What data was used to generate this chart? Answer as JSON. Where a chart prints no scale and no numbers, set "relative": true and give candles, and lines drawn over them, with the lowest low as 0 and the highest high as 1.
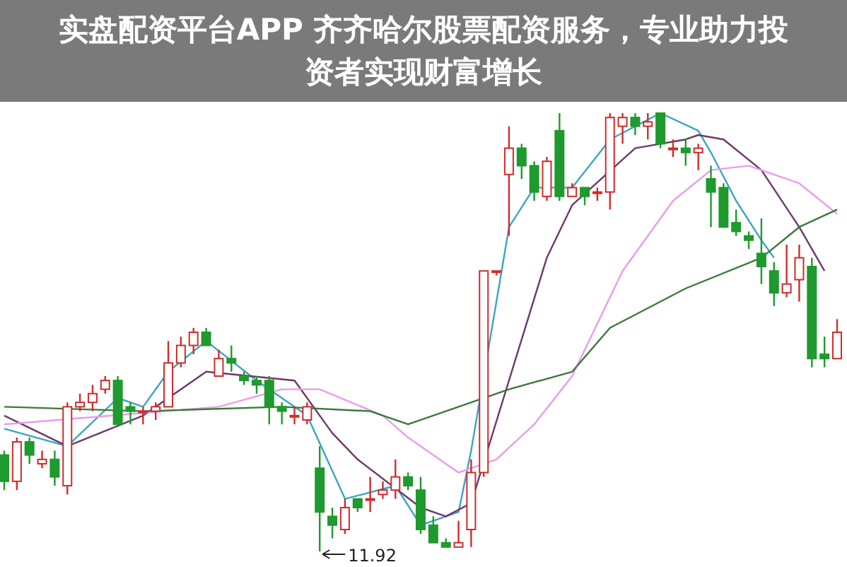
{
  "chart_data": {
    "type": "candlestick",
    "title": "实盘配资平台APP 齐齐哈尔股票配资服务，专业助力投资者实现财富增长",
    "relative": true,
    "categories": [
      null,
      null,
      null,
      null,
      null,
      null,
      null,
      null,
      null,
      null,
      null,
      null,
      null,
      null,
      null,
      null,
      null,
      null,
      null,
      null,
      null,
      null,
      null,
      null,
      null,
      null,
      null,
      null,
      null,
      null,
      null,
      null,
      null,
      null,
      null,
      null,
      null,
      null,
      null,
      null,
      null,
      null,
      null,
      null,
      null,
      null,
      null,
      null,
      null,
      null,
      null,
      null,
      null,
      null,
      null,
      null,
      null,
      null,
      null,
      null,
      null,
      null,
      null,
      null,
      null,
      null,
      null
    ],
    "ohlc": [
      [
        0.22,
        0.23,
        0.14,
        0.16
      ],
      [
        0.16,
        0.26,
        0.14,
        0.25
      ],
      [
        0.25,
        0.26,
        0.2,
        0.22
      ],
      [
        0.2,
        0.23,
        0.19,
        0.21
      ],
      [
        0.21,
        0.23,
        0.15,
        0.17
      ],
      [
        0.15,
        0.34,
        0.13,
        0.33
      ],
      [
        0.33,
        0.36,
        0.32,
        0.34
      ],
      [
        0.34,
        0.38,
        0.32,
        0.36
      ],
      [
        0.37,
        0.4,
        0.36,
        0.39
      ],
      [
        0.39,
        0.4,
        0.29,
        0.29
      ],
      [
        0.33,
        0.34,
        0.29,
        0.32
      ],
      [
        0.32,
        0.33,
        0.29,
        0.32
      ],
      [
        0.32,
        0.34,
        0.3,
        0.33
      ],
      [
        0.33,
        0.48,
        0.33,
        0.43
      ],
      [
        0.43,
        0.49,
        0.42,
        0.47
      ],
      [
        0.47,
        0.51,
        0.45,
        0.5
      ],
      [
        0.5,
        0.51,
        0.47,
        0.47
      ],
      [
        0.4,
        0.46,
        0.4,
        0.44
      ],
      [
        0.44,
        0.47,
        0.41,
        0.43
      ],
      [
        0.4,
        0.41,
        0.38,
        0.39
      ],
      [
        0.39,
        0.4,
        0.36,
        0.38
      ],
      [
        0.39,
        0.4,
        0.29,
        0.33
      ],
      [
        0.33,
        0.34,
        0.29,
        0.32
      ],
      [
        0.31,
        0.33,
        0.29,
        0.31
      ],
      [
        0.3,
        0.34,
        0.29,
        0.33
      ],
      [
        0.19,
        0.24,
        0.0,
        0.09
      ],
      [
        0.08,
        0.1,
        0.03,
        0.06
      ],
      [
        0.05,
        0.12,
        0.04,
        0.1
      ],
      [
        0.12,
        0.12,
        0.09,
        0.1
      ],
      [
        0.12,
        0.17,
        0.09,
        0.12
      ],
      [
        0.13,
        0.16,
        0.12,
        0.14
      ],
      [
        0.14,
        0.21,
        0.12,
        0.17
      ],
      [
        0.17,
        0.18,
        0.14,
        0.15
      ],
      [
        0.14,
        0.17,
        0.04,
        0.05
      ],
      [
        0.06,
        0.08,
        0.02,
        0.02
      ],
      [
        0.02,
        0.03,
        0.01,
        0.01
      ],
      [
        0.01,
        0.07,
        0.01,
        0.02
      ],
      [
        0.05,
        0.21,
        0.01,
        0.18
      ],
      [
        0.18,
        0.64,
        0.17,
        0.64
      ],
      [
        0.64,
        0.64,
        0.63,
        0.64
      ],
      [
        0.86,
        0.97,
        0.72,
        0.92
      ],
      [
        0.92,
        0.93,
        0.85,
        0.88
      ],
      [
        0.88,
        0.89,
        0.8,
        0.82
      ],
      [
        0.81,
        0.9,
        0.8,
        0.89
      ],
      [
        0.96,
        1,
        0.8,
        0.81
      ],
      [
        0.81,
        0.84,
        0.81,
        0.83
      ],
      [
        0.83,
        0.83,
        0.79,
        0.81
      ],
      [
        0.82,
        0.83,
        0.8,
        0.82
      ],
      [
        0.82,
        1,
        0.78,
        0.99
      ],
      [
        0.97,
        1,
        0.93,
        0.99
      ],
      [
        0.99,
        1,
        0.95,
        0.97
      ],
      [
        0.97,
        1,
        0.94,
        0.98
      ],
      [
        1,
        1,
        0.92,
        0.93
      ],
      [
        0.92,
        0.94,
        0.9,
        0.92
      ],
      [
        0.92,
        0.94,
        0.88,
        0.91
      ],
      [
        0.91,
        0.93,
        0.87,
        0.92
      ],
      [
        0.85,
        0.88,
        0.74,
        0.82
      ],
      [
        0.83,
        0.84,
        0.74,
        0.74
      ],
      [
        0.75,
        0.78,
        0.72,
        0.73
      ],
      [
        0.72,
        0.73,
        0.69,
        0.71
      ],
      [
        0.68,
        0.76,
        0.61,
        0.65
      ],
      [
        0.64,
        0.66,
        0.56,
        0.59
      ],
      [
        0.59,
        0.7,
        0.58,
        0.61
      ],
      [
        0.62,
        0.7,
        0.57,
        0.67
      ],
      [
        0.65,
        0.67,
        0.42,
        0.44
      ],
      [
        0.45,
        0.49,
        0.42,
        0.44
      ],
      [
        0.44,
        0.53,
        0.44,
        0.5
      ]
    ],
    "series": [
      {
        "type": "line",
        "color": "#3aa6c0",
        "values": [
          0.28,
          null,
          null,
          null,
          null,
          0.24,
          null,
          null,
          null,
          0.35,
          null,
          0.33,
          null,
          0.41,
          null,
          null,
          0.48,
          null,
          null,
          null,
          0.39,
          null,
          null,
          null,
          0.31,
          null,
          null,
          0.12,
          null,
          null,
          null,
          0.15,
          null,
          0.06,
          null,
          null,
          0.09,
          0.23,
          null,
          null,
          0.74,
          null,
          0.83,
          null,
          null,
          0.83,
          null,
          null,
          0.94,
          null,
          null,
          null,
          1.0,
          null,
          null,
          0.96,
          0.91,
          null,
          0.8,
          null,
          0.71,
          0.67,
          null,
          null,
          null,
          null,
          null
        ]
      },
      {
        "type": "line",
        "color": "#6b3a6b",
        "values": [
          0.31,
          null,
          null,
          null,
          null,
          0.24,
          null,
          null,
          null,
          null,
          null,
          0.31,
          null,
          null,
          null,
          null,
          0.41,
          null,
          null,
          null,
          null,
          null,
          null,
          0.39,
          null,
          null,
          0.27,
          null,
          0.21,
          null,
          null,
          null,
          null,
          0.1,
          null,
          0.08,
          null,
          0.11,
          null,
          null,
          null,
          null,
          null,
          0.67,
          null,
          0.79,
          null,
          null,
          null,
          null,
          0.92,
          null,
          null,
          null,
          0.94,
          0.95,
          null,
          0.94,
          null,
          null,
          0.87,
          null,
          null,
          0.74,
          null,
          0.64,
          null
        ]
      },
      {
        "type": "line",
        "color": "#e89ee8",
        "values": [
          0.29,
          null,
          null,
          null,
          null,
          null,
          null,
          null,
          null,
          null,
          null,
          null,
          null,
          null,
          null,
          null,
          null,
          0.33,
          null,
          null,
          null,
          null,
          0.37,
          null,
          null,
          0.37,
          null,
          null,
          null,
          null,
          0.31,
          null,
          0.26,
          0.24,
          null,
          null,
          0.18,
          null,
          null,
          0.21,
          null,
          null,
          0.29,
          null,
          null,
          0.4,
          null,
          null,
          null,
          0.64,
          null,
          null,
          null,
          0.8,
          null,
          null,
          0.87,
          null,
          null,
          0.88,
          null,
          null,
          null,
          0.84,
          null,
          null,
          0.77
        ]
      },
      {
        "type": "line",
        "color": "#3a7a3a",
        "values": [
          0.33,
          null,
          null,
          null,
          null,
          null,
          null,
          null,
          null,
          null,
          null,
          0.32,
          null,
          null,
          null,
          null,
          null,
          null,
          null,
          null,
          null,
          null,
          0.33,
          null,
          null,
          null,
          null,
          null,
          null,
          0.32,
          null,
          null,
          0.29,
          null,
          null,
          null,
          0.33,
          null,
          null,
          null,
          0.37,
          null,
          null,
          null,
          null,
          0.41,
          null,
          null,
          0.51,
          null,
          null,
          null,
          null,
          null,
          0.6,
          null,
          null,
          null,
          null,
          null,
          0.67,
          null,
          null,
          0.74,
          null,
          null,
          0.78
        ]
      }
    ],
    "annotations": [
      "11.92"
    ]
  }
}
